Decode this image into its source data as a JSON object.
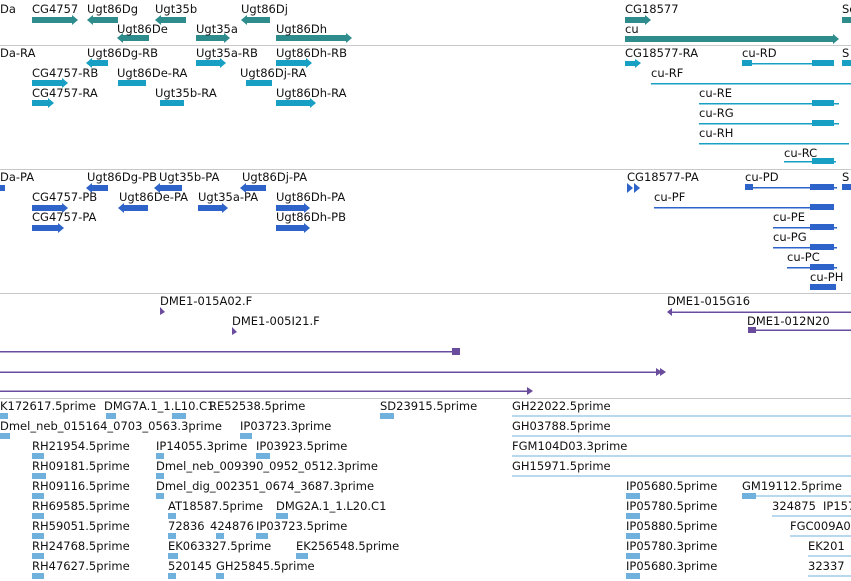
{
  "colors": {
    "gene": "#2e8c8c",
    "rna": "#17a0c4",
    "protein": "#2e63c9",
    "clone": "#6a4c9c",
    "est": "#6fb0dc",
    "separator": "#c8c8c8",
    "background": "#ffffff"
  },
  "tracks": {
    "gene": {
      "labels": [
        "Da",
        "CG4757",
        "Ugt86Dg",
        "Ugt35b",
        "Ugt86Dj",
        "Ugt86De",
        "Ugt35a",
        "Ugt86Dh",
        "CG18577",
        "cu",
        "Se"
      ]
    },
    "transcript": {
      "labels": [
        "Da-RA",
        "Ugt86Dg-RB",
        "Ugt35a-RB",
        "Ugt86Dh-RB",
        "CG4757-RB",
        "Ugt86De-RA",
        "Ugt86Dj-RA",
        "CG4757-RA",
        "Ugt35b-RA",
        "Ugt86Dh-RA",
        "CG18577-RA",
        "cu-RD",
        "cu-RF",
        "cu-RE",
        "cu-RG",
        "cu-RH",
        "cu-RC",
        "S"
      ]
    },
    "protein": {
      "labels": [
        "Da-PA",
        "Ugt86Dg-PB",
        "Ugt35b-PA",
        "Ugt86Dj-PA",
        "CG4757-PB",
        "Ugt86De-PA",
        "Ugt35a-PA",
        "Ugt86Dh-PA",
        "CG4757-PA",
        "Ugt86Dh-PB",
        "CG18577-PA",
        "cu-PD",
        "cu-PF",
        "cu-PE",
        "cu-PG",
        "cu-PC",
        "cu-PH",
        "S"
      ]
    },
    "clone": {
      "labels": [
        "DME1-015A02.F",
        "DME1-005I21.F",
        "DME1-015G16",
        "DME1-012N20"
      ]
    },
    "est": {
      "labels": [
        "K172617.5prime",
        "DMG7A.1_1.L10.C1",
        "RE52538.5prime",
        "SD23915.5prime",
        "GH22022.5prime",
        "Dmel_neb_015164_0703_0563.3prime",
        "IP03723.3prime",
        "GH03788.5prime",
        "RH21954.5prime",
        "IP14055.3prime",
        "IP03923.5prime",
        "FGM104D03.3prime",
        "RH09181.5prime",
        "Dmel_neb_009390_0952_0512.3prime",
        "GH15971.5prime",
        "RH09116.5prime",
        "Dmel_dig_002351_0674_3687.3prime",
        "IP05680.5prime",
        "GM19112.5prime",
        "RH69585.5prime",
        "AT18587.5prime",
        "DMG2A.1_1.L20.C1",
        "IP05780.5prime",
        "324875",
        "IP157",
        "RH59051.5prime",
        "72836",
        "424876",
        "IP03723.5prime",
        "IP05880.5prime",
        "FGC009A0",
        "RH24768.5prime",
        "EK063327.5prime",
        "EK256548.5prime",
        "IP05780.3prime",
        "EK201",
        "RH47627.5prime",
        "520145",
        "GH25845.5prime",
        "IP05680.3prime",
        "32337"
      ]
    }
  }
}
